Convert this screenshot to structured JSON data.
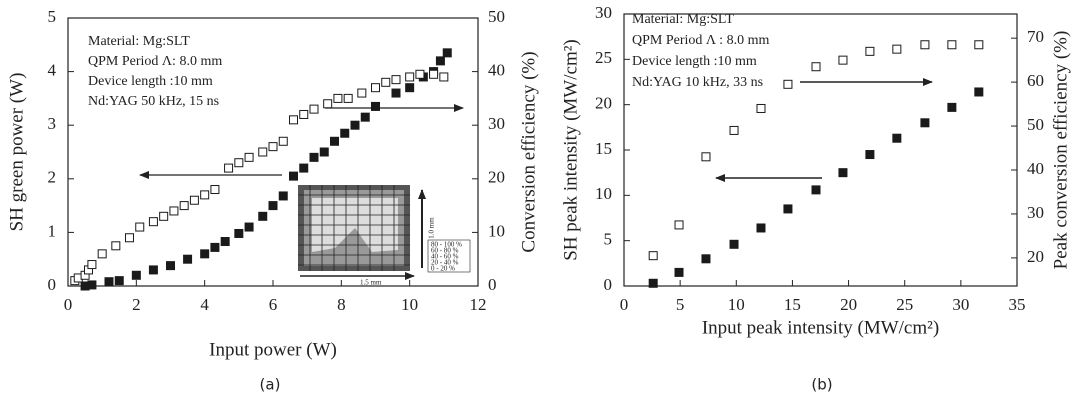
{
  "chart_data": [
    {
      "type": "scatter",
      "xlabel": "Input power (W)",
      "ylabel": "SH green power (W)",
      "y2label": "Conversion efficiency (%)",
      "xlim": [
        0,
        12
      ],
      "xticks": [
        0,
        2,
        4,
        6,
        8,
        10,
        12
      ],
      "ylim": [
        0,
        5
      ],
      "yticks": [
        0,
        1,
        2,
        3,
        4,
        5
      ],
      "y2lim": [
        0,
        50
      ],
      "y2ticks": [
        0,
        10,
        20,
        30,
        40,
        50
      ],
      "series": [
        {
          "color": "#1a1a1a",
          "filled": true,
          "x": [
            0.5,
            0.7,
            1.2,
            1.5,
            2.0,
            2.5,
            3.0,
            3.5,
            4.0,
            4.3,
            4.6,
            5.0,
            5.3,
            5.7,
            6.0,
            6.3,
            6.6,
            6.9,
            7.2,
            7.5,
            7.8,
            8.1,
            8.4,
            8.7,
            9.0,
            9.6,
            10.0,
            10.4,
            10.7,
            10.9,
            11.1
          ],
          "values": [
            0,
            0.02,
            0.08,
            0.1,
            0.2,
            0.3,
            0.38,
            0.5,
            0.6,
            0.72,
            0.83,
            0.98,
            1.1,
            1.3,
            1.5,
            1.68,
            2.05,
            2.2,
            2.4,
            2.5,
            2.7,
            2.85,
            3.0,
            3.15,
            3.35,
            3.6,
            3.7,
            3.9,
            4.0,
            4.2,
            4.35
          ]
        },
        {
          "color": "#1a1a1a",
          "filled": false,
          "axis": "y2",
          "x": [
            0.2,
            0.3,
            0.5,
            0.6,
            0.7,
            1.0,
            1.4,
            1.8,
            2.1,
            2.5,
            2.8,
            3.1,
            3.4,
            3.7,
            4.0,
            4.3,
            4.7,
            5.0,
            5.3,
            5.7,
            6.0,
            6.3,
            6.6,
            6.9,
            7.2,
            7.6,
            7.9,
            8.2,
            8.6,
            9.0,
            9.3,
            9.6,
            10.0,
            10.3,
            10.7,
            11.0
          ],
          "values": [
            1,
            1.5,
            2,
            3,
            4,
            6,
            7.5,
            9,
            11,
            12,
            13,
            14,
            15,
            16,
            17,
            18,
            22,
            23,
            24,
            25,
            26,
            27,
            31,
            32,
            33,
            34,
            35,
            35,
            36,
            37,
            38,
            38.5,
            39,
            39.5,
            39.5,
            39
          ]
        }
      ],
      "annotations": [
        "Material: Mg:SLT",
        "QPM Period Λ: 8.0 mm",
        "Device length :10 mm",
        "Nd:YAG 50 kHz, 15 ns"
      ],
      "inset_labels": [
        "1.0 mm",
        "1.5 mm",
        "80 - 100 %",
        "60 - 80 %",
        "40 - 60 %",
        "20 - 40 %",
        "0 - 20 %"
      ],
      "caption": "(a)"
    },
    {
      "type": "scatter",
      "xlabel": "Input peak intensity (MW/cm²)",
      "ylabel": "SH peak intensity (MW/cm²)",
      "y2label": "Peak conversion efficiency (%)",
      "xlim": [
        0,
        35
      ],
      "xticks": [
        0,
        5,
        10,
        15,
        20,
        25,
        30,
        35
      ],
      "ylim": [
        0,
        30
      ],
      "yticks": [
        0,
        5,
        10,
        15,
        20,
        25,
        30
      ],
      "y2lim": [
        13.6,
        75.5
      ],
      "y2ticks": [
        20,
        30,
        40,
        50,
        60,
        70
      ],
      "series": [
        {
          "color": "#1a1a1a",
          "filled": true,
          "x": [
            2.6,
            4.9,
            7.3,
            9.8,
            12.2,
            14.6,
            17.1,
            19.5,
            21.9,
            24.3,
            26.8,
            29.2,
            31.6
          ],
          "values": [
            0.3,
            1.5,
            3.0,
            4.6,
            6.4,
            8.5,
            10.6,
            12.5,
            14.5,
            16.3,
            18.0,
            19.7,
            21.4
          ]
        },
        {
          "color": "#1a1a1a",
          "filled": false,
          "axis": "y2",
          "x": [
            2.6,
            4.9,
            7.3,
            9.8,
            12.2,
            14.6,
            17.1,
            19.5,
            21.9,
            24.3,
            26.8,
            29.2,
            31.6
          ],
          "values": [
            20.5,
            27.5,
            43,
            49,
            54,
            59.5,
            63.5,
            65,
            67,
            67.5,
            68.5,
            68.5,
            68.5
          ]
        }
      ],
      "annotations": [
        "Material: Mg:SLT",
        "QPM Period Λ : 8.0 mm",
        "Device length :10 mm",
        "Nd:YAG 10 kHz, 33 ns"
      ],
      "caption": "(b)"
    }
  ]
}
